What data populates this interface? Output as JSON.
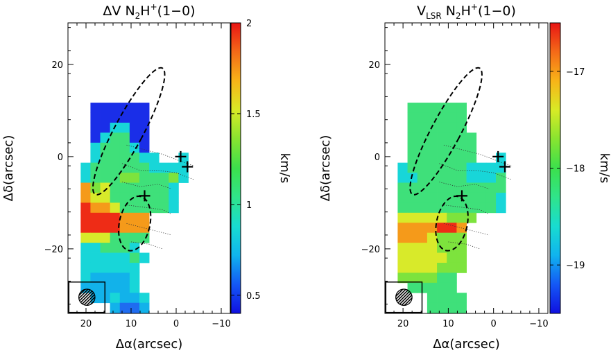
{
  "chart_data": [
    {
      "type": "heatmap",
      "title_main": "ΔV  N",
      "title_sub": "2",
      "title_sup": "H",
      "title_plus": "+",
      "title_tail": "(1−0)",
      "xlabel": "Δα(arcsec)",
      "ylabel": "Δδ(arcsec)",
      "xlim": [
        24,
        -12
      ],
      "ylim": [
        -34,
        29
      ],
      "xticks": [
        {
          "v": 20,
          "l": "20"
        },
        {
          "v": 10,
          "l": "10"
        },
        {
          "v": 0,
          "l": "0"
        },
        {
          "v": -10,
          "l": "−10"
        }
      ],
      "yticks": [
        {
          "v": 20,
          "l": "20"
        },
        {
          "v": 0,
          "l": "0"
        },
        {
          "v": -20,
          "l": "−20"
        }
      ],
      "colorbar": {
        "label": "km/s",
        "range": [
          0.4,
          2.0
        ],
        "ticks": [
          {
            "v": 0.5,
            "l": "0.5"
          },
          {
            "v": 1.0,
            "l": "1"
          },
          {
            "v": 1.5,
            "l": "1.5"
          },
          {
            "v": 2.0,
            "l": "2"
          }
        ]
      },
      "grid_x0": 12.5,
      "grid_y0": 11.7,
      "grid_step": 2.17,
      "rows": [
        "......aaaaaa......",
        "......aaaaaa......",
        "......aaddaa......",
        "......adeeaa......",
        "......deeeda......",
        "......deeeedd..d..",
        ".....deeeeeedddd..",
        ".....deeeffeeefd..",
        ".....hfgeeeeeed...",
        ".....hggeeeeeed...",
        ".....ihhgeeeeed...",
        ".....iiiihhh......",
        ".....iiiihhh......",
        ".....gggeeee......",
        ".....ddeeed.......",
        ".....ddddded.......",
        ".....dddddd.......",
        ".....dccccd.......",
        ".....cccccd.......",
        "......ccdccd......",
        "........cbbc......",
        "........bbbc......",
        "........bbb......."
      ],
      "stars": [
        {
          "x": -1.0,
          "y": 0.0
        },
        {
          "x": -2.5,
          "y": -2.2
        },
        {
          "x": 7.0,
          "y": -8.5
        }
      ],
      "ellipses": [
        {
          "cx": 10.5,
          "cy": 5.5,
          "rx": 3.2,
          "ry": 15.5,
          "angle": 28
        },
        {
          "cx": 9.2,
          "cy": -14.5,
          "rx": 3.4,
          "ry": 6.0,
          "angle": 12
        }
      ],
      "beam": {
        "cx": 19.8,
        "cy": -30.5,
        "r": 1.8
      }
    },
    {
      "type": "heatmap",
      "title_main": "V",
      "title_sub": "LSR",
      "title_mid": "  N",
      "title_sub2": "2",
      "title_sup": "H",
      "title_plus": "+",
      "title_tail": "(1−0)",
      "xlabel": "Δα(arcsec)",
      "ylabel": "Δδ(arcsec)",
      "xlim": [
        24,
        -12
      ],
      "ylim": [
        -34,
        29
      ],
      "xticks": [
        {
          "v": 20,
          "l": "20"
        },
        {
          "v": 10,
          "l": "10"
        },
        {
          "v": 0,
          "l": "0"
        },
        {
          "v": -10,
          "l": "−10"
        }
      ],
      "yticks": [
        {
          "v": 20,
          "l": "20"
        },
        {
          "v": 0,
          "l": "0"
        },
        {
          "v": -20,
          "l": "−20"
        }
      ],
      "colorbar": {
        "label": "km/s",
        "range": [
          -19.5,
          -16.5
        ],
        "ticks": [
          {
            "v": -17,
            "l": "−17"
          },
          {
            "v": -18,
            "l": "−18"
          },
          {
            "v": -19,
            "l": "−19"
          }
        ]
      },
      "grid_x0": 12.5,
      "grid_y0": 11.7,
      "grid_step": 2.17,
      "rows": [
        "......eeeeee......",
        "......eeeeee......",
        "......eeeeee......",
        "......eeeeeee.....",
        "......eeeeeee.....",
        "......eeeeeee..d..",
        ".....deeeeeedddd..",
        ".....ddeeeeeddde..",
        ".....eeeeeeeeeee..",
        ".....eeeeeeeeeed..",
        ".....eeeeeeeeeed..",
        ".....gggggfff.....",
        ".....hhhhiih......",
        ".....hhhgfff......",
        ".....ggggfff......",
        ".....gggggff.......",
        ".....ggggfff......",
        ".....ffffee.......",
        "......eeeee.......",
        "........eeee......",
        "........eeee......",
        "........eeee......",
        "........eee......."
      ],
      "stars": [
        {
          "x": -1.0,
          "y": 0.0
        },
        {
          "x": -2.5,
          "y": -2.2
        },
        {
          "x": 7.0,
          "y": -8.5
        }
      ],
      "ellipses": [
        {
          "cx": 10.5,
          "cy": 5.5,
          "rx": 3.2,
          "ry": 15.5,
          "angle": 28
        },
        {
          "cx": 9.2,
          "cy": -14.5,
          "rx": 3.4,
          "ry": 6.0,
          "angle": 12
        }
      ],
      "beam": {
        "cx": 19.8,
        "cy": -30.5,
        "r": 1.8
      }
    }
  ],
  "palette": {
    "a": "#1a2ee8",
    "b": "#1f6cf0",
    "c": "#12b2ea",
    "d": "#18d6d8",
    "e": "#3fe07a",
    "f": "#7de33d",
    "g": "#d8ea2a",
    "h": "#f59a1a",
    "i": "#ee2c16"
  }
}
